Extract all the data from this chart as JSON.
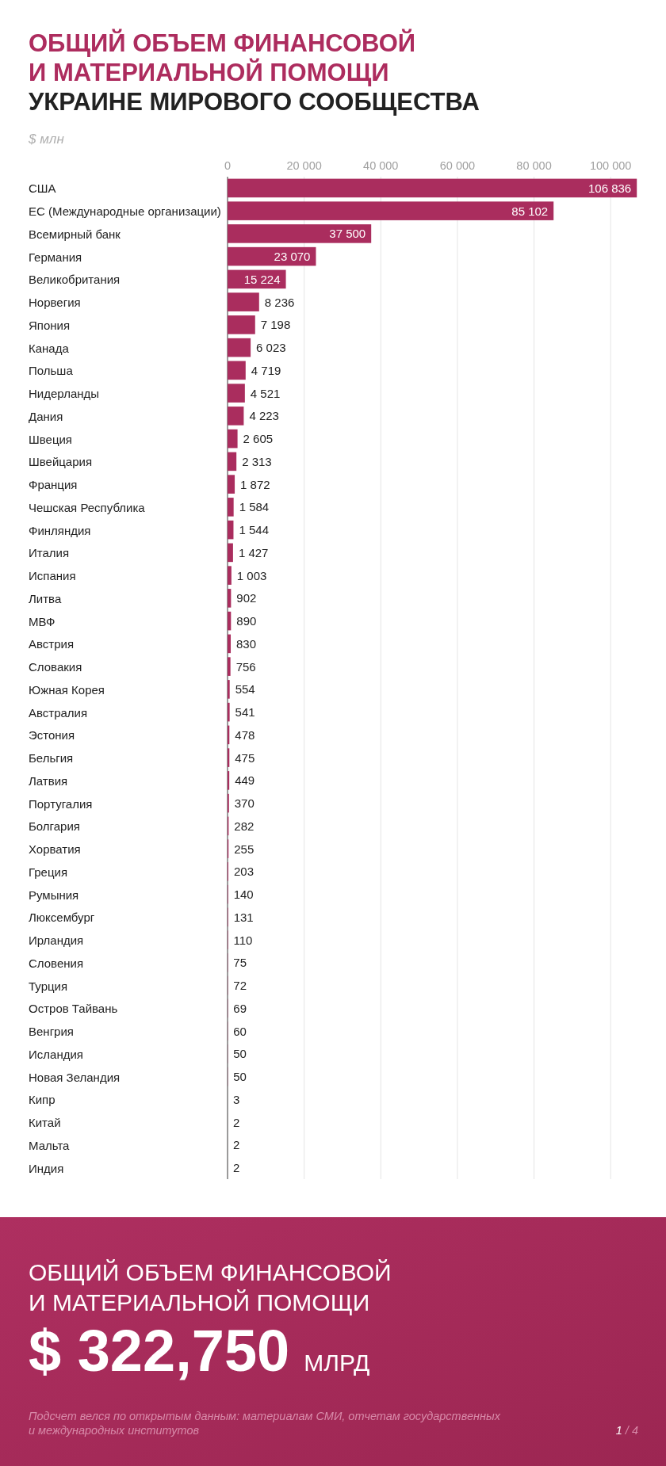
{
  "chart_data": {
    "type": "bar",
    "orientation": "horizontal",
    "title": "ОБЩИЙ ОБЪЕМ ФИНАНСОВОЙ\nИ МАТЕРИАЛЬНОЙ ПОМОЩИ",
    "subtitle": "УКРАИНЕ МИРОВОГО СООБЩЕСТВА",
    "xlabel": "$ млн",
    "categories": [
      "США",
      "ЕС (Международные организации)",
      "Всемирный банк",
      "Германия",
      "Великобритания",
      "Норвегия",
      "Япония",
      "Канада",
      "Польша",
      "Нидерланды",
      "Дания",
      "Швеция",
      "Швейцария",
      "Франция",
      "Чешская Республика",
      "Финляндия",
      "Италия",
      "Испания",
      "Литва",
      "МВФ",
      "Австрия",
      "Словакия",
      "Южная Корея",
      "Австралия",
      "Эстония",
      "Бельгия",
      "Латвия",
      "Португалия",
      "Болгария",
      "Хорватия",
      "Греция",
      "Румыния",
      "Люксембург",
      "Ирландия",
      "Словения",
      "Турция",
      "Остров Тайвань",
      "Венгрия",
      "Исландия",
      "Новая Зеландия",
      "Кипр",
      "Китай",
      "Мальта",
      "Индия"
    ],
    "values": [
      106836,
      85102,
      37500,
      23070,
      15224,
      8236,
      7198,
      6023,
      4719,
      4521,
      4223,
      2605,
      2313,
      1872,
      1584,
      1544,
      1427,
      1003,
      902,
      890,
      830,
      756,
      554,
      541,
      478,
      475,
      449,
      370,
      282,
      255,
      203,
      140,
      131,
      110,
      75,
      72,
      69,
      60,
      50,
      50,
      3,
      2,
      2,
      2
    ],
    "value_labels": [
      "106 836",
      "85 102",
      "37 500",
      "23 070",
      "15 224",
      "8 236",
      "7 198",
      "6 023",
      "4 719",
      "4 521",
      "4 223",
      "2 605",
      "2 313",
      "1 872",
      "1 584",
      "1 544",
      "1 427",
      "1 003",
      "902",
      "890",
      "830",
      "756",
      "554",
      "541",
      "478",
      "475",
      "449",
      "370",
      "282",
      "255",
      "203",
      "140",
      "131",
      "110",
      "75",
      "72",
      "69",
      "60",
      "50",
      "50",
      "3",
      "2",
      "2",
      "2"
    ],
    "color": "#aa2d5e",
    "xlim": [
      0,
      107000
    ],
    "xticks": [
      0,
      {
        "value": 20000,
        "label": "20 000"
      },
      {
        "value": 40000,
        "label": "40 000"
      },
      {
        "value": 60000,
        "label": "60 000"
      },
      {
        "value": 80000,
        "label": "80 000"
      },
      {
        "value": 100000,
        "label": "100 000"
      }
    ],
    "grid": "x",
    "annotations": [
      "ОБЩИЙ ОБЪЕМ ФИНАНСОВОЙ\nИ МАТЕРИАЛЬНОЙ ПОМОЩИ",
      "$ 322,750 МЛРД",
      "Подсчет велся по открытым данным: материалам СМИ, отчетам государственных\nи международных институтов",
      "1 / 4"
    ]
  }
}
